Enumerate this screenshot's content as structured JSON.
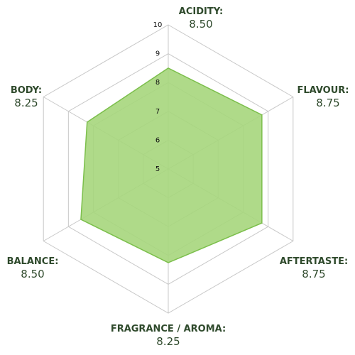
{
  "chart_data": {
    "type": "radar",
    "categories": [
      "ACIDITY:",
      "FLAVOUR:",
      "AFTERTASTE:",
      "FRAGRANCE / AROMA:",
      "BALANCE:",
      "BODY:"
    ],
    "values": [
      8.5,
      8.75,
      8.75,
      8.25,
      8.5,
      8.25
    ],
    "value_labels": [
      "8.50",
      "8.75",
      "8.75",
      "8.25",
      "8.50",
      "8.25"
    ],
    "rlim": [
      5,
      10
    ],
    "rticks": [
      5,
      6,
      7,
      8,
      9,
      10
    ],
    "color": "#a6d67c",
    "grid": true
  }
}
